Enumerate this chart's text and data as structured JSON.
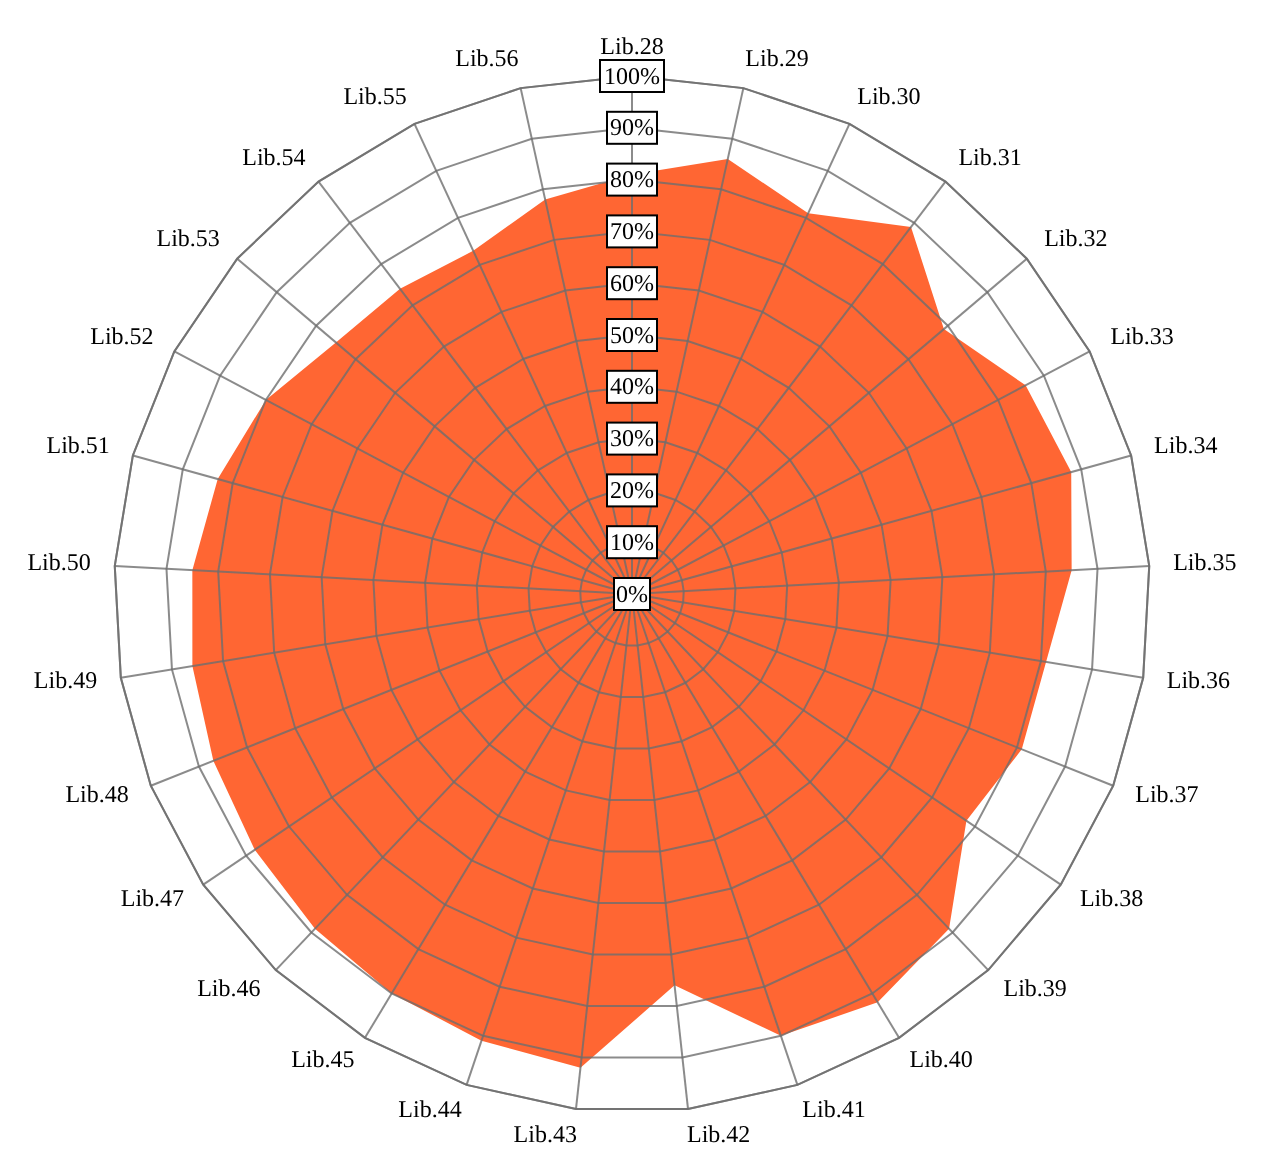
{
  "chart_data": {
    "type": "radar",
    "categories": [
      "Lib.28",
      "Lib.29",
      "Lib.30",
      "Lib.31",
      "Lib.32",
      "Lib.33",
      "Lib.34",
      "Lib.35",
      "Lib.36",
      "Lib.37",
      "Lib.38",
      "Lib.39",
      "Lib.40",
      "Lib.41",
      "Lib.42",
      "Lib.43",
      "Lib.44",
      "Lib.45",
      "Lib.46",
      "Lib.47",
      "Lib.48",
      "Lib.49",
      "Lib.50",
      "Lib.51",
      "Lib.52",
      "Lib.53",
      "Lib.54",
      "Lib.55",
      "Lib.56"
    ],
    "series": [
      {
        "color": "#ff6633",
        "values": [
          81,
          86,
          81,
          89,
          79,
          86,
          88,
          85,
          81,
          81,
          78,
          89,
          92,
          90,
          76,
          92,
          91,
          90,
          89,
          88,
          87,
          86,
          85,
          83,
          80,
          75,
          74,
          73,
          78
        ]
      }
    ],
    "ylim": [
      0,
      100
    ],
    "yticks": [
      {
        "value": 0,
        "label": "0%"
      },
      {
        "value": 10,
        "label": "10%"
      },
      {
        "value": 20,
        "label": "20%"
      },
      {
        "value": 30,
        "label": "30%"
      },
      {
        "value": 40,
        "label": "40%"
      },
      {
        "value": 50,
        "label": "50%"
      },
      {
        "value": 60,
        "label": "60%"
      },
      {
        "value": 70,
        "label": "70%"
      },
      {
        "value": 80,
        "label": "80%"
      },
      {
        "value": 90,
        "label": "90%"
      },
      {
        "value": 100,
        "label": "100%"
      }
    ],
    "grid": true
  }
}
